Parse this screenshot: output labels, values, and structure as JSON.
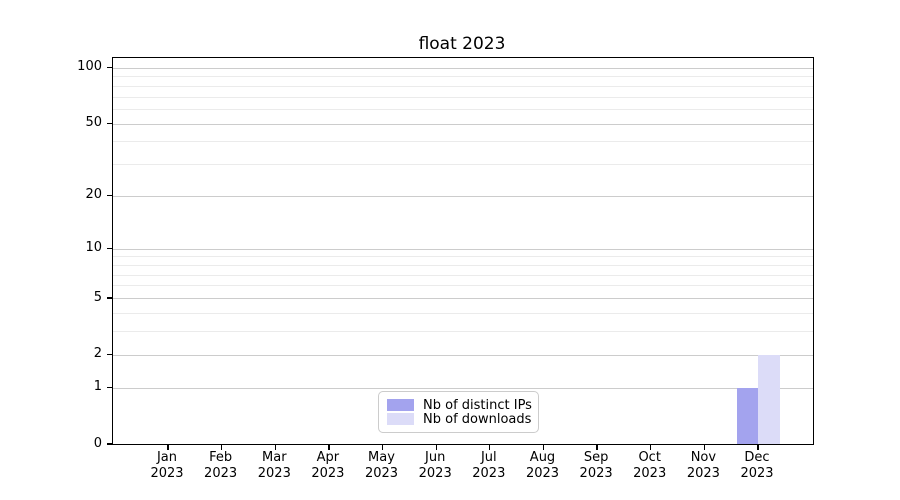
{
  "title": "float 2023",
  "chart_data": {
    "type": "bar",
    "title": "float 2023",
    "x_categories": [
      "Jan",
      "Feb",
      "Mar",
      "Apr",
      "May",
      "Jun",
      "Jul",
      "Aug",
      "Sep",
      "Oct",
      "Nov",
      "Dec"
    ],
    "x_year": "2023",
    "series": [
      {
        "name": "Nb of distinct IPs",
        "color": "#a3a3ee",
        "values": [
          0,
          0,
          0,
          0,
          0,
          0,
          0,
          0,
          0,
          0,
          0,
          1
        ]
      },
      {
        "name": "Nb of downloads",
        "color": "#dcdcf8",
        "values": [
          0,
          0,
          0,
          0,
          0,
          0,
          0,
          0,
          0,
          0,
          0,
          2
        ]
      }
    ],
    "yscale": "log1p",
    "ylim": [
      0,
      113
    ],
    "yticks": [
      0,
      1,
      2,
      5,
      10,
      20,
      50,
      100
    ],
    "yticks_minor": [
      3,
      4,
      6,
      7,
      8,
      9,
      30,
      40,
      60,
      70,
      80,
      90
    ],
    "grid": "horizontal",
    "legend_position": "lower-center"
  },
  "colors": {
    "major_grid": "#cccccc",
    "minor_grid": "#ebebeb",
    "spine": "#000000",
    "background": "#ffffff",
    "legend_border": "#cccccc"
  }
}
